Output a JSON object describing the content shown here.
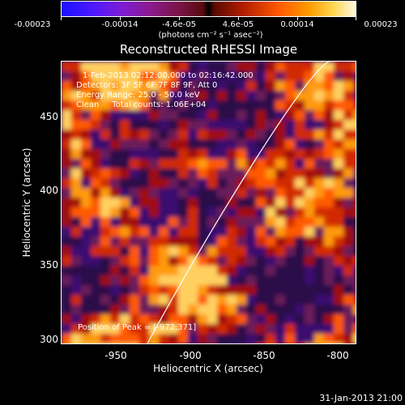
{
  "colorbar": {
    "ticks": [
      "-0.00023",
      "-0.00014",
      "-4.6e-05",
      "4.6e-05",
      "0.00014",
      "0.00023"
    ],
    "units": "(photons cm⁻² s⁻¹ asec⁻²)",
    "min": -0.00023,
    "max": 0.00023
  },
  "title": "Reconstructed RHESSI Image",
  "annotations": {
    "time_range": "1-Feb-2013 02:12:00.000 to 02:16:42.000",
    "detectors": "Detectors: 3F 5F 6F 7F 8F 9F, Att 0",
    "energy_range": "Energy Range: 25.0 - 50.0 keV",
    "method": "Clean     Total counts: 1.06E+04",
    "peak": "Position of Peak = [-972,371]"
  },
  "axes": {
    "xlabel": "Heliocentric X (arcsec)",
    "ylabel": "Heliocentric Y (arcsec)",
    "xlim": [
      -988,
      -787
    ],
    "ylim": [
      298,
      490
    ],
    "x_ticks": [
      "-950",
      "-900",
      "-850",
      "-800"
    ],
    "y_ticks": [
      "300",
      "350",
      "400",
      "450"
    ]
  },
  "datestamp": "31-Jan-2013 21:00"
}
